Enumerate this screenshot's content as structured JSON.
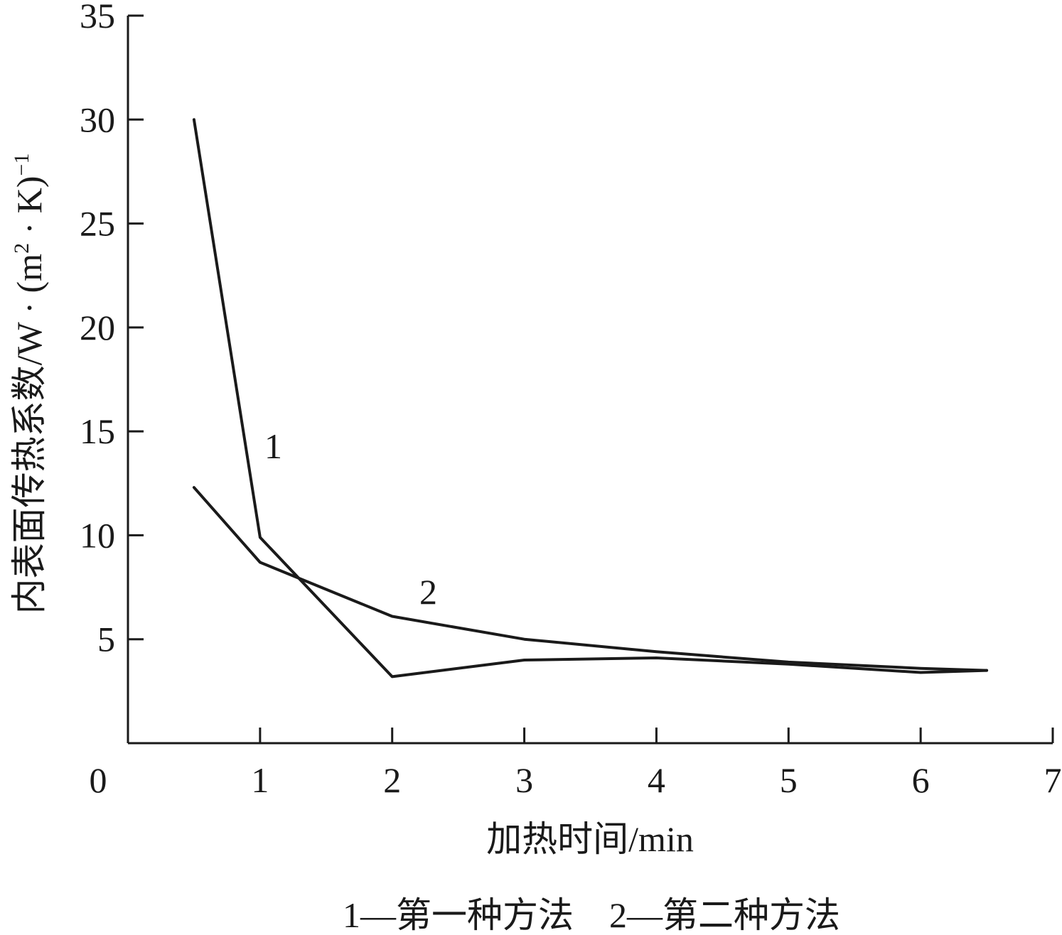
{
  "chart_data": {
    "type": "line",
    "title": "",
    "xlabel": "加热时间/min",
    "ylabel_main": "内表面传热系数/W · (m",
    "ylabel_sup1": "2",
    "ylabel_mid": " · K)",
    "ylabel_sup2": "−1",
    "xlim": [
      0,
      7
    ],
    "ylim": [
      0,
      35
    ],
    "xticks": [
      0,
      1,
      2,
      3,
      4,
      5,
      6,
      7
    ],
    "yticks": [
      5,
      10,
      15,
      20,
      25,
      30,
      35
    ],
    "grid": false,
    "series": [
      {
        "name": "1",
        "x": [
          0.5,
          1,
          2,
          3,
          4,
          5,
          6,
          6.5
        ],
        "y": [
          30,
          9.9,
          3.2,
          4.0,
          4.1,
          3.8,
          3.4,
          3.5
        ]
      },
      {
        "name": "2",
        "x": [
          0.5,
          1,
          2,
          3,
          4,
          5,
          6,
          6.5
        ],
        "y": [
          12.3,
          8.7,
          6.1,
          5.0,
          4.4,
          3.9,
          3.6,
          3.5
        ]
      }
    ],
    "legend": "1—第一种方法　2—第二种方法"
  }
}
